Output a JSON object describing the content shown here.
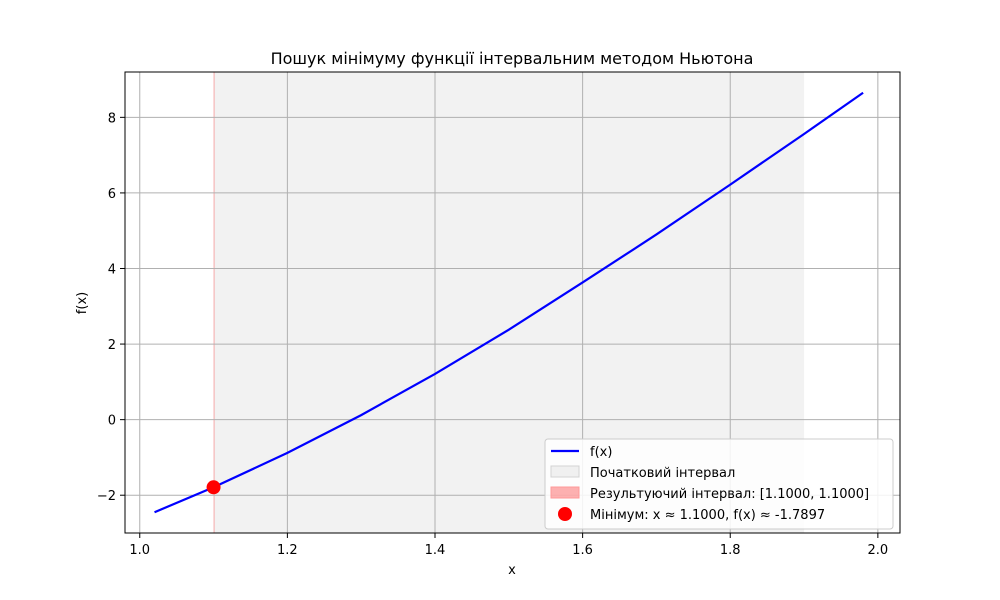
{
  "chart_data": {
    "type": "line",
    "title": "Пошук мінімуму функції інтервальним методом Ньютона",
    "xlabel": "x",
    "ylabel": "f(x)",
    "xlim": [
      0.98,
      2.03
    ],
    "ylim": [
      -3.0,
      9.2
    ],
    "xticks": [
      1.0,
      1.2,
      1.4,
      1.6,
      1.8,
      2.0
    ],
    "xtick_labels": [
      "1.0",
      "1.2",
      "1.4",
      "1.6",
      "1.8",
      "2.0"
    ],
    "yticks": [
      -2,
      0,
      2,
      4,
      6,
      8
    ],
    "ytick_labels": [
      "−2",
      "0",
      "2",
      "4",
      "6",
      "8"
    ],
    "grid": true,
    "legend_position": "lower-right",
    "series": [
      {
        "name": "f(x)",
        "color": "#0000ff",
        "x": [
          1.02,
          1.1,
          1.2,
          1.3,
          1.4,
          1.5,
          1.6,
          1.7,
          1.8,
          1.9,
          1.98
        ],
        "y": [
          -2.45,
          -1.79,
          -0.88,
          0.12,
          1.21,
          2.38,
          3.63,
          4.9,
          6.22,
          7.56,
          8.65
        ]
      }
    ],
    "shaded_regions": [
      {
        "name": "Початковий інтервал",
        "x": [
          1.1,
          1.9
        ],
        "color": "#d3d3d3",
        "opacity": 0.3
      },
      {
        "name": "Результуючий інтервал: [1.1000, 1.1000]",
        "x": [
          1.1,
          1.1
        ],
        "color": "#ff0000",
        "opacity": 0.3
      }
    ],
    "points": [
      {
        "name": "Мінімум: x ≈ 1.1000, f(x) ≈ -1.7897",
        "x": 1.1,
        "y": -1.7897,
        "color": "#ff0000"
      }
    ]
  }
}
